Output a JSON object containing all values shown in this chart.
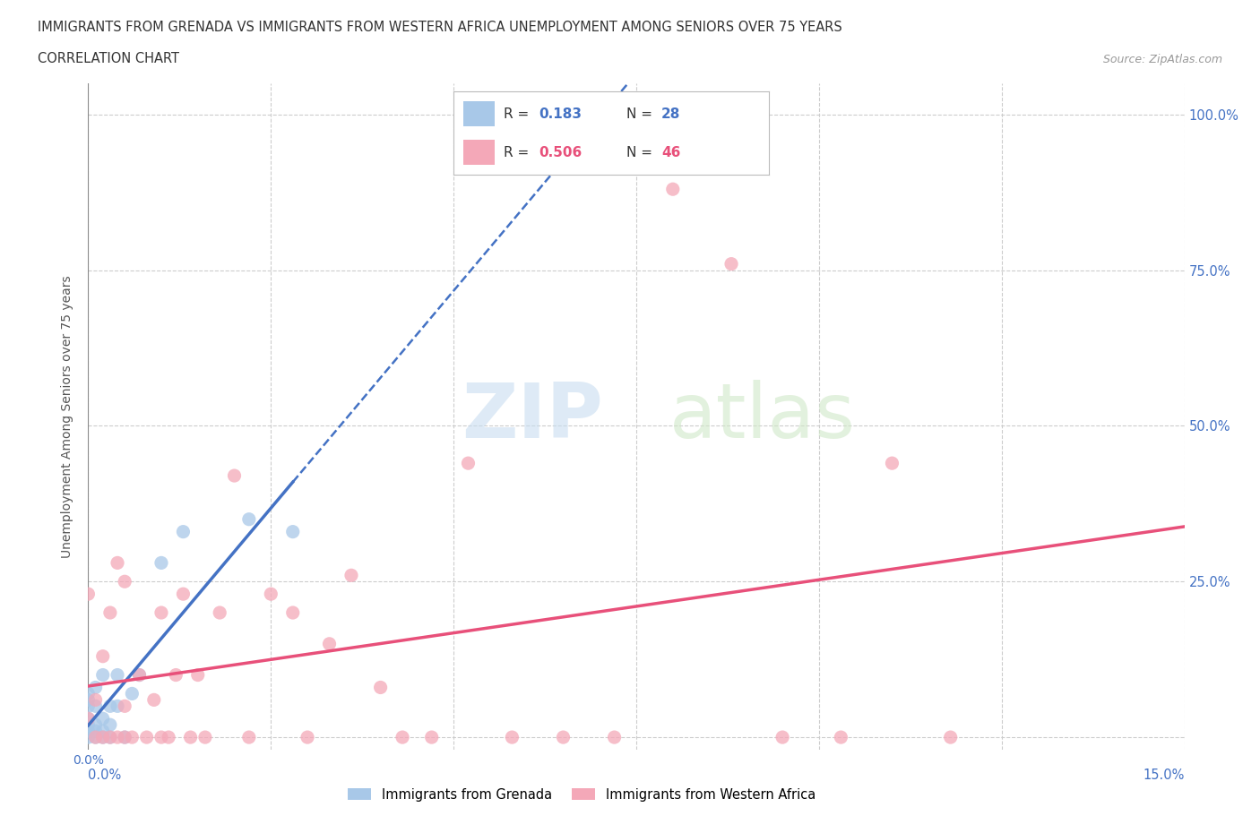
{
  "title_line1": "IMMIGRANTS FROM GRENADA VS IMMIGRANTS FROM WESTERN AFRICA UNEMPLOYMENT AMONG SENIORS OVER 75 YEARS",
  "title_line2": "CORRELATION CHART",
  "source": "Source: ZipAtlas.com",
  "ylabel": "Unemployment Among Seniors over 75 years",
  "xlim": [
    0.0,
    0.15
  ],
  "ylim": [
    -0.02,
    1.05
  ],
  "x_ticks": [
    0.0,
    0.025,
    0.05,
    0.075,
    0.1,
    0.125,
    0.15
  ],
  "y_ticks": [
    0.0,
    0.25,
    0.5,
    0.75,
    1.0
  ],
  "y_tick_labels": [
    "",
    "25.0%",
    "50.0%",
    "75.0%",
    "100.0%"
  ],
  "watermark_zip": "ZIP",
  "watermark_atlas": "atlas",
  "grenada_R": 0.183,
  "grenada_N": 28,
  "westafrica_R": 0.506,
  "westafrica_N": 46,
  "grenada_color": "#a8c8e8",
  "westafrica_color": "#f4a8b8",
  "grenada_line_color": "#4472c4",
  "westafrica_line_color": "#e8507a",
  "grenada_scatter_x": [
    0.0,
    0.0,
    0.0,
    0.0,
    0.0,
    0.0,
    0.0,
    0.001,
    0.001,
    0.001,
    0.001,
    0.001,
    0.002,
    0.002,
    0.002,
    0.002,
    0.003,
    0.003,
    0.003,
    0.004,
    0.004,
    0.005,
    0.006,
    0.007,
    0.01,
    0.013,
    0.022,
    0.028
  ],
  "grenada_scatter_y": [
    0.0,
    0.01,
    0.02,
    0.03,
    0.05,
    0.06,
    0.07,
    0.0,
    0.01,
    0.02,
    0.05,
    0.08,
    0.0,
    0.01,
    0.03,
    0.1,
    0.0,
    0.02,
    0.05,
    0.05,
    0.1,
    0.0,
    0.07,
    0.1,
    0.28,
    0.33,
    0.35,
    0.33
  ],
  "westafrica_scatter_x": [
    0.0,
    0.0,
    0.001,
    0.001,
    0.002,
    0.002,
    0.003,
    0.003,
    0.004,
    0.004,
    0.005,
    0.005,
    0.005,
    0.006,
    0.007,
    0.008,
    0.009,
    0.01,
    0.01,
    0.011,
    0.012,
    0.013,
    0.014,
    0.015,
    0.016,
    0.018,
    0.02,
    0.022,
    0.025,
    0.028,
    0.03,
    0.033,
    0.036,
    0.04,
    0.043,
    0.047,
    0.052,
    0.058,
    0.065,
    0.072,
    0.08,
    0.088,
    0.095,
    0.103,
    0.11,
    0.118
  ],
  "westafrica_scatter_y": [
    0.03,
    0.23,
    0.0,
    0.06,
    0.0,
    0.13,
    0.0,
    0.2,
    0.0,
    0.28,
    0.0,
    0.05,
    0.25,
    0.0,
    0.1,
    0.0,
    0.06,
    0.2,
    0.0,
    0.0,
    0.1,
    0.23,
    0.0,
    0.1,
    0.0,
    0.2,
    0.42,
    0.0,
    0.23,
    0.2,
    0.0,
    0.15,
    0.26,
    0.08,
    0.0,
    0.0,
    0.44,
    0.0,
    0.0,
    0.0,
    0.88,
    0.76,
    0.0,
    0.0,
    0.44,
    0.0
  ]
}
